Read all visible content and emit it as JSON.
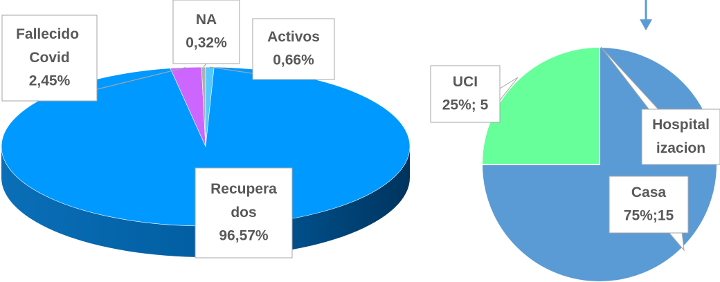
{
  "chart_data": [
    {
      "type": "pie3d",
      "categories": [
        "Fallecido Covid",
        "NA",
        "Activos",
        "Recuperados"
      ],
      "values": [
        2.45,
        0.32,
        0.66,
        96.57
      ],
      "value_labels": [
        "2,45%",
        "0,32%",
        "0,66%",
        "96,57%"
      ],
      "colors": [
        "#cc66ff",
        "#b0b0b0",
        "#55c8ff",
        "#0099ff"
      ]
    },
    {
      "type": "pie",
      "categories": [
        "Hospitalizacion",
        "Casa",
        "UCI"
      ],
      "values": [
        0,
        15,
        5
      ],
      "value_labels": [
        null,
        "75%;15",
        "25%; 5"
      ],
      "colors": [
        "#d9d9d9",
        "#5b9bd5",
        "#66ff99"
      ]
    }
  ]
}
